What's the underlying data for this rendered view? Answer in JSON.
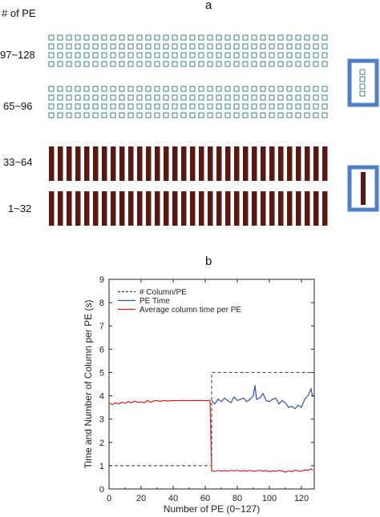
{
  "panel_a": {
    "letter": "a",
    "header": "# of PE",
    "row_labels": [
      "97~128",
      "65~96",
      "33~64",
      "1~32"
    ]
  },
  "panel_b": {
    "letter": "b"
  },
  "colors": {
    "small_square_stroke": "#3f7f80",
    "bar_fill": "#5a1a14",
    "inset_frame": "#4f7fc4",
    "dashed_series": "#333333",
    "pe_time_series": "#3050a8",
    "avg_time_series": "#d42020"
  },
  "chart_data": {
    "type": "line",
    "xlabel": "Number of PE (0~127)",
    "ylabel": "Time and Number of Column per PE (s)",
    "xlim": [
      0,
      128
    ],
    "ylim": [
      0,
      9
    ],
    "xticks": [
      0,
      20,
      40,
      60,
      80,
      100,
      120
    ],
    "yticks": [
      0,
      1,
      2,
      3,
      4,
      5,
      6,
      7,
      8,
      9
    ],
    "grid": false,
    "legend_position": "top-left",
    "series": [
      {
        "name": "# Column/PE",
        "style": "dashed",
        "x": [
          0,
          64,
          64,
          128
        ],
        "y": [
          1,
          1,
          5,
          5
        ]
      },
      {
        "name": "PE Time",
        "style": "solid",
        "x": [
          64,
          66,
          68,
          70,
          72,
          74,
          76,
          78,
          80,
          82,
          84,
          86,
          88,
          90,
          91,
          92,
          94,
          96,
          98,
          100,
          102,
          104,
          106,
          108,
          110,
          112,
          114,
          116,
          118,
          120,
          122,
          124,
          126,
          127
        ],
        "y": [
          3.8,
          3.65,
          3.85,
          3.75,
          3.9,
          3.8,
          3.7,
          3.95,
          3.8,
          3.85,
          3.9,
          3.75,
          3.85,
          4.0,
          4.45,
          3.85,
          3.9,
          4.1,
          3.8,
          3.75,
          3.85,
          3.9,
          3.65,
          3.8,
          3.7,
          3.5,
          3.55,
          3.45,
          3.6,
          3.5,
          3.85,
          4.0,
          4.3,
          3.95
        ]
      },
      {
        "name": "Average column time per PE",
        "style": "solid",
        "x": [
          0,
          2,
          4,
          6,
          8,
          10,
          12,
          14,
          16,
          18,
          20,
          22,
          24,
          26,
          28,
          30,
          32,
          34,
          36,
          38,
          40,
          42,
          44,
          46,
          48,
          50,
          52,
          54,
          56,
          58,
          60,
          62,
          63,
          64,
          66,
          68,
          70,
          72,
          74,
          76,
          78,
          80,
          82,
          84,
          86,
          88,
          90,
          92,
          94,
          96,
          98,
          100,
          102,
          104,
          106,
          108,
          110,
          112,
          114,
          116,
          118,
          120,
          122,
          124,
          126,
          127
        ],
        "y": [
          3.7,
          3.62,
          3.7,
          3.65,
          3.72,
          3.68,
          3.75,
          3.7,
          3.78,
          3.72,
          3.74,
          3.7,
          3.8,
          3.72,
          3.78,
          3.8,
          3.76,
          3.8,
          3.78,
          3.79,
          3.8,
          3.79,
          3.8,
          3.8,
          3.8,
          3.79,
          3.8,
          3.8,
          3.8,
          3.8,
          3.79,
          3.8,
          3.8,
          0.78,
          0.76,
          0.8,
          0.77,
          0.79,
          0.76,
          0.8,
          0.78,
          0.8,
          0.76,
          0.79,
          0.77,
          0.8,
          0.76,
          0.78,
          0.8,
          0.77,
          0.79,
          0.74,
          0.78,
          0.76,
          0.8,
          0.77,
          0.72,
          0.78,
          0.75,
          0.8,
          0.78,
          0.76,
          0.82,
          0.8,
          0.86,
          0.8
        ]
      }
    ]
  }
}
